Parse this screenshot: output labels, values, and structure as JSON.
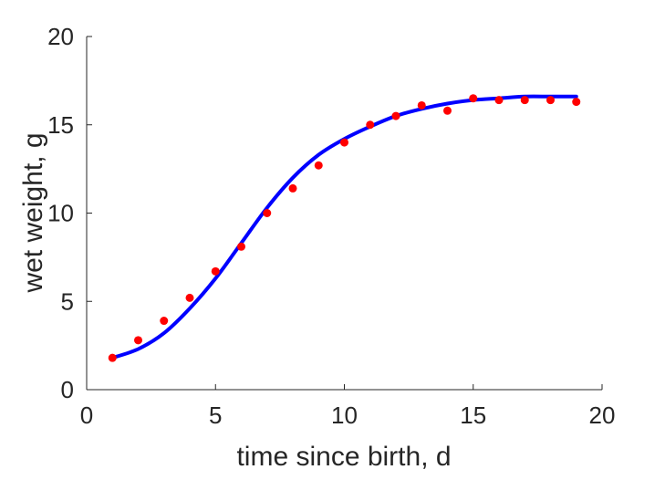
{
  "chart_data": {
    "type": "scatter",
    "title": "",
    "xlabel": "time since birth, d",
    "ylabel": "wet weight, g",
    "xlim": [
      0,
      20
    ],
    "ylim": [
      0,
      20
    ],
    "x_ticks": [
      "0",
      "5",
      "10",
      "15",
      "20"
    ],
    "y_ticks": [
      "0",
      "5",
      "10",
      "15",
      "20"
    ],
    "grid": false,
    "series": [
      {
        "kind": "points",
        "color": "#ff0000",
        "x": [
          1,
          2,
          3,
          4,
          5,
          6,
          7,
          8,
          9,
          10,
          11,
          12,
          13,
          14,
          15,
          16,
          17,
          18,
          19
        ],
        "y": [
          1.8,
          2.8,
          3.9,
          5.2,
          6.7,
          8.1,
          10.0,
          11.4,
          12.7,
          14.0,
          15.0,
          15.5,
          16.1,
          15.8,
          16.5,
          16.4,
          16.4,
          16.4,
          16.3
        ]
      },
      {
        "kind": "line",
        "color": "#0000ff",
        "x": [
          1,
          2,
          3,
          4,
          5,
          6,
          7,
          8,
          9,
          10,
          11,
          12,
          13,
          14,
          15,
          16,
          17,
          18,
          19
        ],
        "y": [
          1.8,
          2.3,
          3.2,
          4.6,
          6.3,
          8.3,
          10.3,
          12.0,
          13.3,
          14.2,
          14.9,
          15.5,
          15.9,
          16.2,
          16.4,
          16.5,
          16.6,
          16.6,
          16.6
        ]
      }
    ]
  }
}
